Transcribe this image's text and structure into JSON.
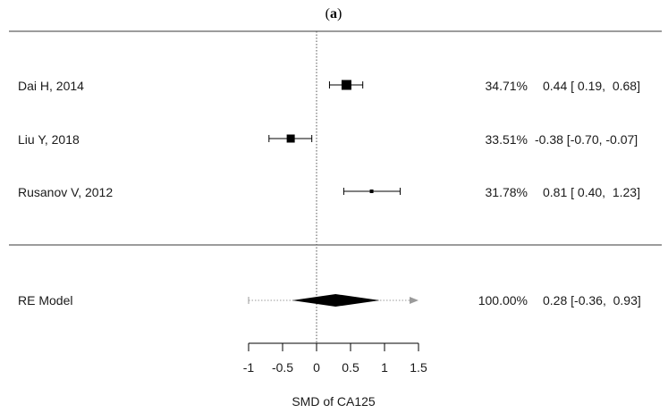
{
  "chart_data": {
    "type": "forest",
    "panel_label": "a",
    "xlabel": "SMD of CA125",
    "xticks": [
      -1,
      -0.5,
      0,
      0.5,
      1,
      1.5
    ],
    "xtick_labels": [
      "-1",
      "-0.5",
      "0",
      "0.5",
      "1",
      "1.5"
    ],
    "xlim": [
      -1,
      1.5
    ],
    "studies": [
      {
        "label": "Dai H, 2014",
        "weight": "34.71%",
        "estimate": 0.44,
        "ci_low": 0.19,
        "ci_high": 0.68,
        "ci_text": "0.44 [ 0.19,  0.68]"
      },
      {
        "label": "Liu Y, 2018",
        "weight": "33.51%",
        "estimate": -0.38,
        "ci_low": -0.7,
        "ci_high": -0.07,
        "ci_text": "-0.38 [-0.70, -0.07]"
      },
      {
        "label": "Rusanov V, 2012",
        "weight": "31.78%",
        "estimate": 0.81,
        "ci_low": 0.4,
        "ci_high": 1.23,
        "ci_text": "0.81 [ 0.40,  1.23]"
      }
    ],
    "summary": {
      "label": "RE Model",
      "weight": "100.00%",
      "estimate": 0.28,
      "ci_low": -0.36,
      "ci_high": 0.93,
      "pi_low": -1.0,
      "pi_high": 1.5,
      "ci_text": "0.28 [-0.36,  0.93]"
    },
    "colors": {
      "marks": "#000000",
      "prediction_interval": "#9a9a9a",
      "rules": "#3a3a3a"
    }
  }
}
